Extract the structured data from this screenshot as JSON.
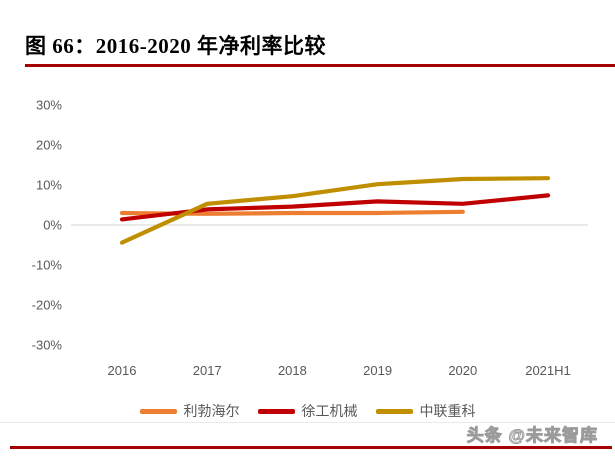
{
  "title": "图 66：2016-2020 年净利率比较",
  "watermark": "头条 @未来智库",
  "colors": {
    "rule_red": "#A40000",
    "axis_text": "#595959",
    "gridline": "#D6D6D6",
    "liebherr_orange": "#ED7D31",
    "xcmg_red": "#C00000",
    "zoomlion_gold": "#BF8F00"
  },
  "chart_data": {
    "type": "line",
    "title": "图 66：2016-2020 年净利率比较",
    "categories": [
      "2016",
      "2017",
      "2018",
      "2019",
      "2020",
      "2021H1"
    ],
    "series": [
      {
        "key": "liebherr",
        "name": "利勃海尔",
        "color": "#ED7D31",
        "values": [
          3.0,
          2.8,
          3.0,
          3.0,
          3.3,
          null
        ]
      },
      {
        "key": "xcmg",
        "name": "徐工机械",
        "color": "#C00000",
        "values": [
          1.4,
          3.9,
          4.6,
          5.9,
          5.3,
          7.4
        ]
      },
      {
        "key": "zoomlion",
        "name": "中联重科",
        "color": "#BF8F00",
        "values": [
          -4.4,
          5.3,
          7.2,
          10.2,
          11.5,
          11.7
        ]
      }
    ],
    "ylabel": "",
    "xlabel": "",
    "ylim": [
      -30,
      30
    ],
    "yticks": [
      "30%",
      "20%",
      "10%",
      "0%",
      "-10%",
      "-20%",
      "-30%"
    ],
    "ytick_values": [
      30,
      20,
      10,
      0,
      -10,
      -20,
      -30
    ],
    "grid": "zero-line-only",
    "legend_position": "bottom"
  }
}
